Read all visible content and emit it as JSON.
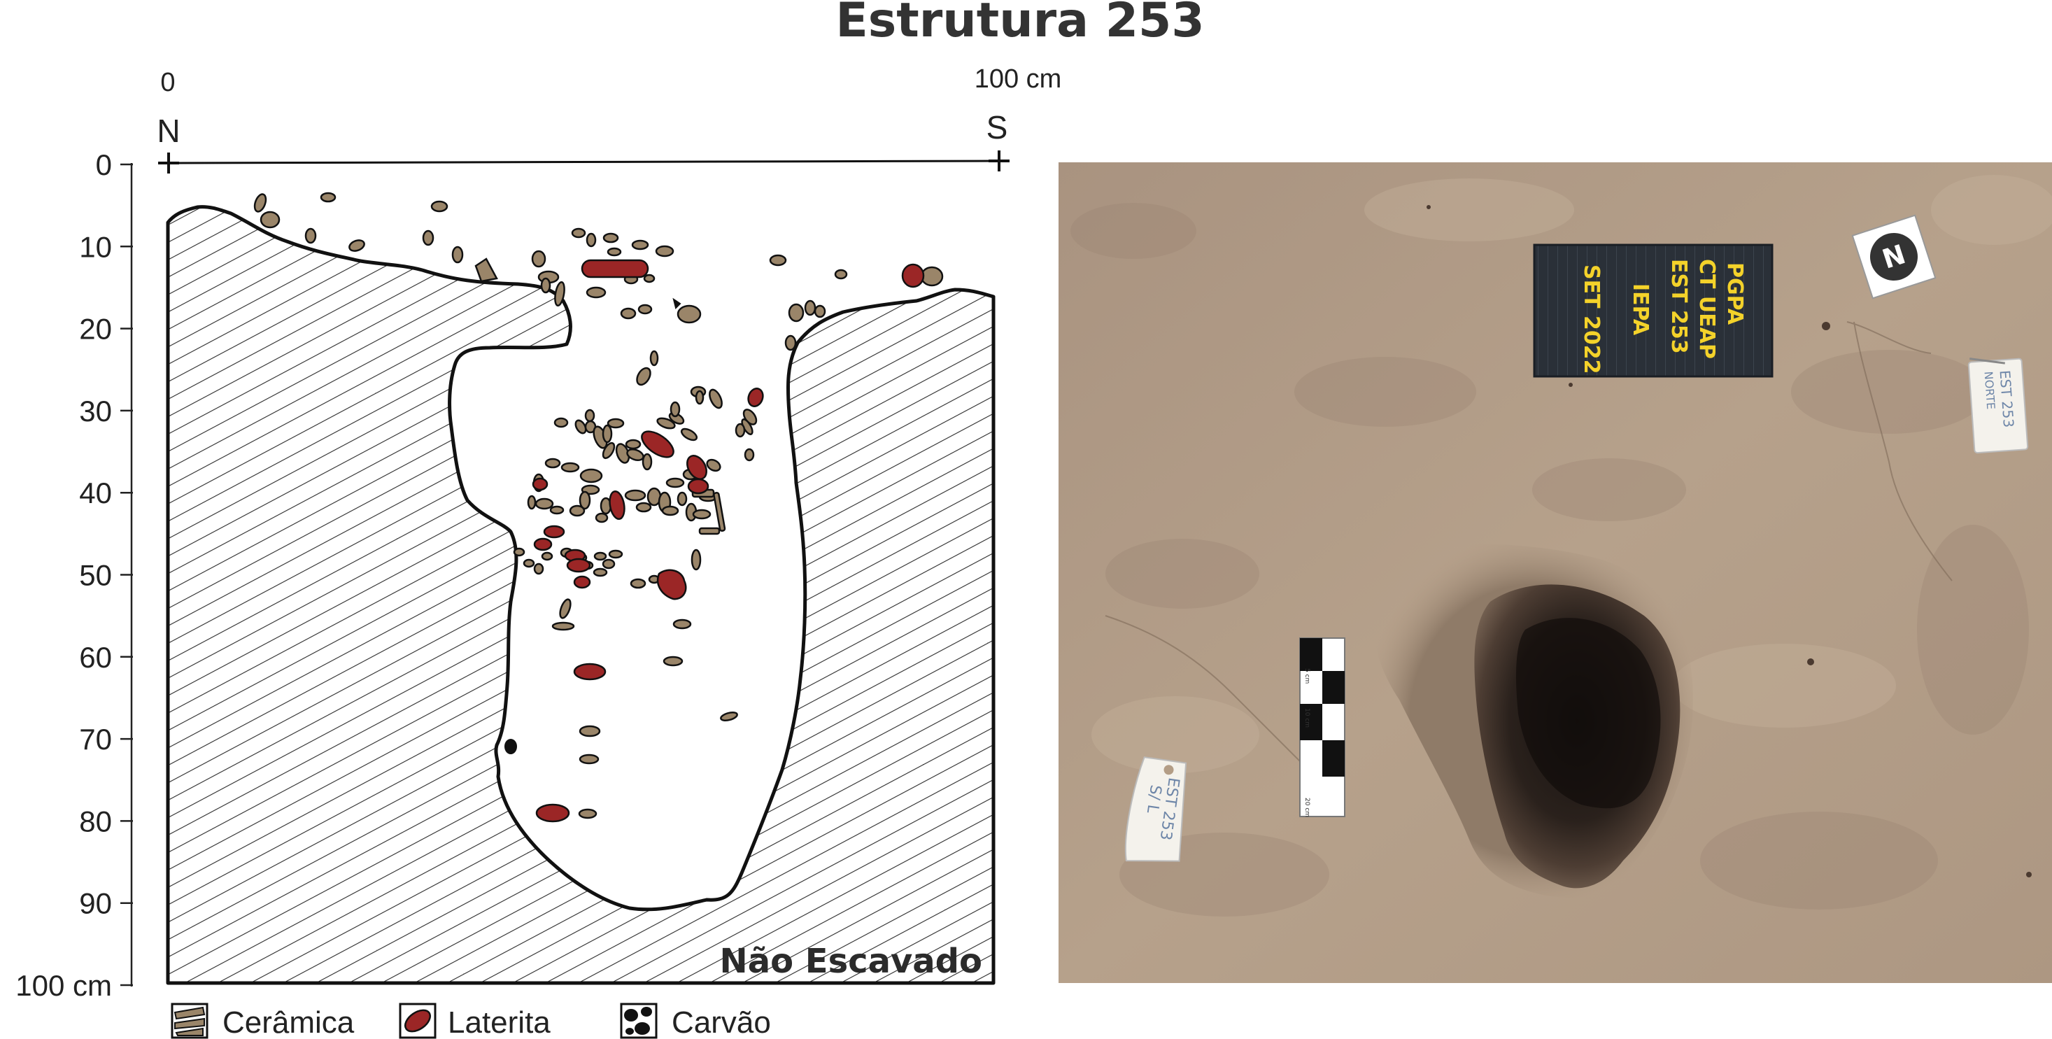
{
  "title": "Estrutura 253",
  "profile": {
    "top_scale": {
      "start_label": "0",
      "end_label": "100 cm"
    },
    "orientation": {
      "left": "N",
      "right": "S"
    },
    "depth_ticks": [
      "0",
      "10",
      "20",
      "30",
      "40",
      "50",
      "60",
      "70",
      "80",
      "90",
      "100 cm"
    ],
    "unexcavated_label": "Não Escavado"
  },
  "legend": [
    {
      "label": "Cerâmica",
      "symbol": "ceramic-swatch"
    },
    {
      "label": "Laterita",
      "symbol": "laterite-swatch"
    },
    {
      "label": "Carvão",
      "symbol": "charcoal-swatch"
    }
  ],
  "photo": {
    "board": {
      "col1": "PGPA",
      "col2": "CT UEAP",
      "col3": "EST 253",
      "col4": "IEPA",
      "col5": "SET 2022"
    },
    "tag_left": {
      "line1": "EST 253",
      "line2": "S/ L"
    },
    "tag_right": {
      "line1": "EST 253",
      "line2": "NORTE"
    },
    "north_marker": "N",
    "scale_bar": {
      "mark1": "5 cm",
      "mark2": "10 cm",
      "mark3": "20 cm"
    }
  },
  "colors": {
    "ceramic": "#9a8569",
    "laterite": "#9b2626",
    "charcoal": "#111111",
    "soil": "#b39d86",
    "board": "#2a3038",
    "board_text": "#f4d22a"
  }
}
